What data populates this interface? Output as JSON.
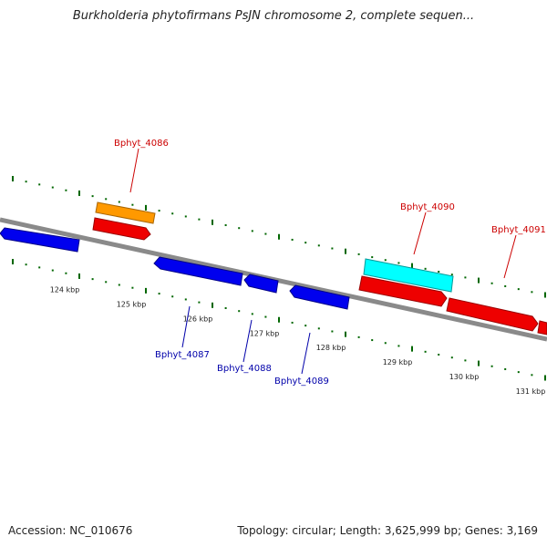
{
  "title": "Burkholderia phytofirmans PsJN chromosome 2, complete sequen...",
  "footer": {
    "accession": "Accession: NC_010676",
    "summary": "Topology: circular; Length: 3,625,999 bp; Genes: 3,169"
  },
  "colors": {
    "backbone": "#808080",
    "forward_gene": "#ff0000",
    "reverse_gene": "#0000ff",
    "highlight_orange": "#ff9900",
    "highlight_cyan": "#00ffff",
    "tick": "#006600",
    "forward_label": "#cc0000",
    "reverse_label": "#0000aa"
  },
  "scale": {
    "unit": "kbp",
    "major_ticks_kbp": [
      124,
      125,
      126,
      127,
      128,
      129,
      130,
      131
    ]
  },
  "labels": [
    {
      "id": "label-bphyt-4086",
      "text": "Bphyt_4086",
      "strand": "forward"
    },
    {
      "id": "label-bphyt-4090",
      "text": "Bphyt_4090",
      "strand": "forward"
    },
    {
      "id": "label-bphyt-4091",
      "text": "Bphyt_4091",
      "strand": "forward"
    },
    {
      "id": "label-bphyt-4087",
      "text": "Bphyt_4087",
      "strand": "reverse"
    },
    {
      "id": "label-bphyt-4088",
      "text": "Bphyt_4088",
      "strand": "reverse"
    },
    {
      "id": "label-bphyt-4089",
      "text": "Bphyt_4089",
      "strand": "reverse"
    }
  ]
}
